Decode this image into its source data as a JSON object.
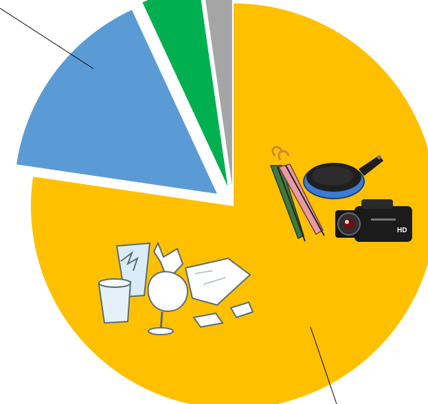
{
  "chart_data": {
    "type": "pie",
    "title": "",
    "exploded": true,
    "leader_lines": true,
    "slices": [
      {
        "key": "yellow",
        "value": 75.0,
        "color": "#FFC000"
      },
      {
        "key": "blue",
        "value": 15.3,
        "color": "#5B9BD5"
      },
      {
        "key": "green",
        "value": 4.5,
        "color": "#00B050"
      },
      {
        "key": "gray",
        "value": 2.2,
        "color": "#A5A5A5"
      }
    ]
  },
  "illustrations": {
    "yellow_slice": [
      "umbrella-icon",
      "frying-pan-icon",
      "video-camera-icon",
      "broken-glass-icon",
      "broken-dishes-icon"
    ]
  },
  "camera_badge": "HD"
}
